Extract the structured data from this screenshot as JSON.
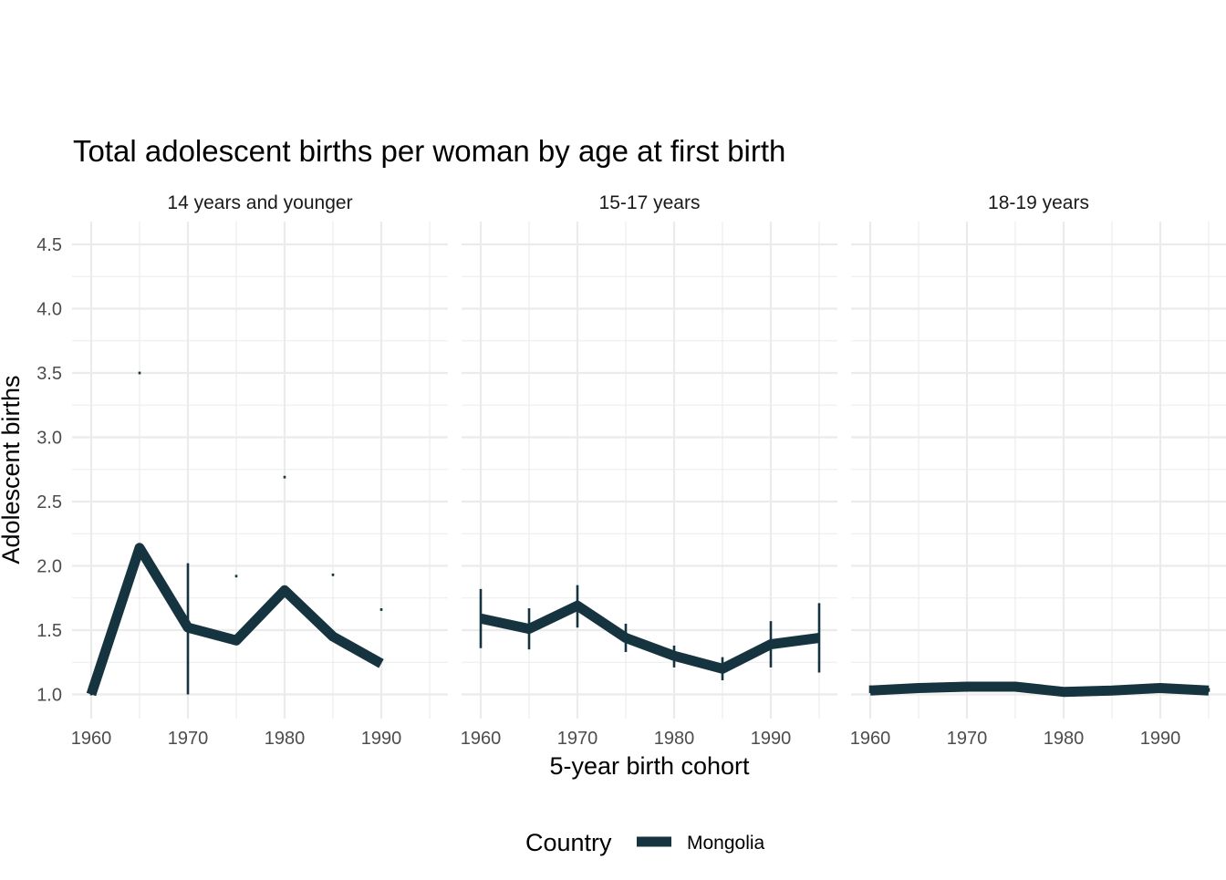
{
  "chart_data": {
    "type": "line",
    "title": "Total adolescent births per woman by age at first birth",
    "xlabel": "5-year birth cohort",
    "ylabel": "Adolescent births",
    "xlim": [
      1958,
      1997
    ],
    "ylim": [
      0.9,
      4.65
    ],
    "x_ticks": [
      1960,
      1970,
      1980,
      1990
    ],
    "y_ticks": [
      1.0,
      1.5,
      2.0,
      2.5,
      3.0,
      3.5,
      4.0,
      4.5
    ],
    "y_tick_labels": [
      "1.0",
      "1.5",
      "2.0",
      "2.5",
      "3.0",
      "3.5",
      "4.0",
      "4.5"
    ],
    "grid": true,
    "legend": {
      "title": "Country",
      "position": "bottom"
    },
    "line_color": "#15343f",
    "panels": [
      {
        "label": "14 years and younger",
        "series": [
          {
            "name": "Mongolia",
            "x": [
              1960,
              1965,
              1970,
              1975,
              1980,
              1985,
              1990
            ],
            "y": [
              1.0,
              2.14,
              1.52,
              1.42,
              1.81,
              1.45,
              1.24
            ],
            "error_low": [
              1.0,
              3.49,
              1.0,
              1.91,
              2.68,
              1.92,
              1.65
            ],
            "error_high": [
              1.0,
              3.51,
              2.02,
              1.93,
              2.7,
              1.94,
              1.67
            ]
          }
        ]
      },
      {
        "label": "15-17 years",
        "series": [
          {
            "name": "Mongolia",
            "x": [
              1960,
              1965,
              1970,
              1975,
              1980,
              1985,
              1990,
              1995
            ],
            "y": [
              1.59,
              1.51,
              1.69,
              1.44,
              1.3,
              1.2,
              1.39,
              1.44
            ],
            "error_low": [
              1.36,
              1.35,
              1.52,
              1.33,
              1.21,
              1.11,
              1.21,
              1.17
            ],
            "error_high": [
              1.82,
              1.67,
              1.85,
              1.55,
              1.38,
              1.29,
              1.57,
              1.71
            ]
          }
        ]
      },
      {
        "label": "18-19 years",
        "series": [
          {
            "name": "Mongolia",
            "x": [
              1960,
              1965,
              1970,
              1975,
              1980,
              1985,
              1990,
              1995
            ],
            "y": [
              1.03,
              1.05,
              1.06,
              1.06,
              1.02,
              1.03,
              1.05,
              1.03
            ],
            "error_low": [
              1.01,
              1.04,
              1.05,
              1.05,
              1.01,
              1.02,
              1.04,
              1.02
            ],
            "error_high": [
              1.07,
              1.06,
              1.07,
              1.07,
              1.03,
              1.04,
              1.07,
              1.05
            ]
          }
        ]
      }
    ]
  }
}
